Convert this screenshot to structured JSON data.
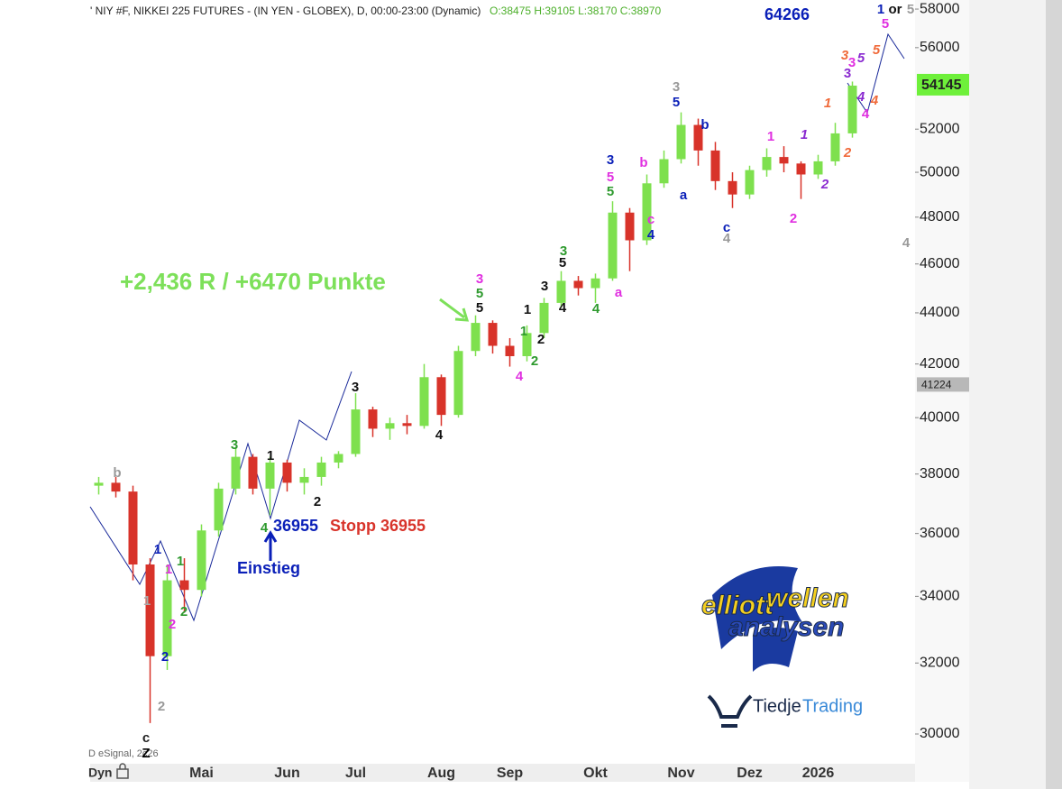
{
  "chart_data": {
    "type": "candlestick",
    "title": "' NIY #F, NIKKEI 225 FUTURES - (IN YEN - GLOBEX), D, 00:00-23:00 (Dynamic)",
    "subtitle": "O:38475 H:39105 L:38170 C:38970",
    "title_color": "#222222",
    "subtitle_color": "#4caf2a",
    "log_scale": true,
    "grid": false,
    "up_color": "#7ee04e",
    "down_color": "#d8332a",
    "ylim": [
      29175,
      58480
    ],
    "yticks": [
      30000,
      32000,
      34000,
      36000,
      38000,
      40000,
      42000,
      44000,
      46000,
      48000,
      50000,
      52000,
      56000,
      58000
    ],
    "categories": [
      null,
      null,
      null,
      null,
      null,
      null,
      "Mai",
      null,
      null,
      null,
      null,
      "Jun",
      null,
      null,
      null,
      "Jul",
      null,
      null,
      null,
      null,
      "Aug",
      null,
      null,
      null,
      "Sep",
      null,
      null,
      null,
      null,
      "Okt",
      null,
      null,
      null,
      null,
      "Nov",
      null,
      null,
      null,
      "Dez",
      null,
      null,
      null,
      "2026",
      null,
      null
    ],
    "open": [
      37600,
      37700,
      37400,
      35000,
      32200,
      34500,
      34200,
      36100,
      37500,
      38600,
      37500,
      38400,
      37700,
      37900,
      38400,
      38700,
      40300,
      39600,
      39800,
      39700,
      41500,
      40100,
      42500,
      43600,
      42700,
      42300,
      43200,
      44400,
      45300,
      45000,
      45400,
      48200,
      47000,
      49500,
      50600,
      52200,
      51000,
      49600,
      49000,
      50100,
      50700,
      50400,
      49900,
      50500,
      51800
    ],
    "high": [
      37900,
      37900,
      37600,
      35200,
      35000,
      35200,
      36300,
      37700,
      38900,
      38700,
      38600,
      38500,
      38200,
      38600,
      38800,
      40900,
      40400,
      40000,
      40100,
      42000,
      41600,
      42700,
      43900,
      43700,
      43000,
      43500,
      44600,
      45700,
      45500,
      45600,
      48700,
      48400,
      49900,
      51000,
      52800,
      52500,
      51400,
      50000,
      50300,
      51100,
      51200,
      50500,
      50800,
      52300,
      54300
    ],
    "low": [
      37300,
      37200,
      34500,
      30300,
      31800,
      33500,
      34000,
      35900,
      37300,
      37300,
      36600,
      37400,
      37300,
      37600,
      38200,
      38600,
      39300,
      39200,
      39400,
      39600,
      39700,
      40000,
      42300,
      42400,
      41900,
      42100,
      43000,
      44200,
      44700,
      44400,
      45300,
      45700,
      46800,
      49300,
      50400,
      50300,
      49200,
      48400,
      48800,
      49800,
      50000,
      48800,
      49700,
      50300,
      51600
    ],
    "close": [
      37700,
      37400,
      35000,
      32200,
      34500,
      34200,
      36100,
      37500,
      38600,
      37500,
      38400,
      37700,
      37900,
      38400,
      38700,
      40300,
      39600,
      39800,
      39700,
      41500,
      40100,
      42500,
      43600,
      42700,
      42300,
      43200,
      44400,
      45300,
      45000,
      45400,
      48200,
      47000,
      49500,
      50600,
      52200,
      51000,
      49600,
      49000,
      50100,
      50700,
      50400,
      49900,
      50500,
      51800,
      54100
    ],
    "price_markers": [
      {
        "value": 54145,
        "color": "#6ef03a"
      },
      {
        "value": 41224,
        "color": "#b8b8b8"
      }
    ],
    "corner_label": "Dyn",
    "copyright": "D eSignal, 2c26",
    "wave_labels": [
      {
        "text": "b",
        "color": "#999999"
      },
      {
        "text": "1",
        "color": "#aaaaaa"
      },
      {
        "text": "1",
        "color": "#0a1fb8"
      },
      {
        "text": "1",
        "color": "#e030e0"
      },
      {
        "text": "1",
        "color": "#2e9a2e"
      },
      {
        "text": "2",
        "color": "#e030e0"
      },
      {
        "text": "2",
        "color": "#2e9a2e"
      },
      {
        "text": "2",
        "color": "#0a1fb8"
      },
      {
        "text": "2",
        "color": "#999999"
      },
      {
        "text": "c",
        "color": "#222222"
      },
      {
        "text": "Z",
        "color": "#000000"
      },
      {
        "text": "3",
        "color": "#2e9a2e"
      },
      {
        "text": "4",
        "color": "#2e9a2e"
      },
      {
        "text": "1",
        "color": "#111111"
      },
      {
        "text": "2",
        "color": "#111111"
      },
      {
        "text": "3",
        "color": "#111111"
      },
      {
        "text": "4",
        "color": "#111111"
      },
      {
        "text": "3",
        "color": "#e030e0"
      },
      {
        "text": "5",
        "color": "#2e9a2e"
      },
      {
        "text": "5",
        "color": "#111111"
      },
      {
        "text": "1",
        "color": "#2e9a2e"
      },
      {
        "text": "1",
        "color": "#111111"
      },
      {
        "text": "2",
        "color": "#111111"
      },
      {
        "text": "2",
        "color": "#2e9a2e"
      },
      {
        "text": "4",
        "color": "#e030e0"
      },
      {
        "text": "3",
        "color": "#111111"
      },
      {
        "text": "3",
        "color": "#2e9a2e"
      },
      {
        "text": "5",
        "color": "#111111"
      },
      {
        "text": "4",
        "color": "#111111"
      },
      {
        "text": "4",
        "color": "#2e9a2e"
      },
      {
        "text": "3",
        "color": "#0a1fb8"
      },
      {
        "text": "5",
        "color": "#e030e0"
      },
      {
        "text": "5",
        "color": "#2e9a2e"
      },
      {
        "text": "a",
        "color": "#e030e0"
      },
      {
        "text": "b",
        "color": "#e030e0"
      },
      {
        "text": "c",
        "color": "#e030e0"
      },
      {
        "text": "4",
        "color": "#0a1fb8"
      },
      {
        "text": "3",
        "color": "#999999"
      },
      {
        "text": "5",
        "color": "#0a1fb8"
      },
      {
        "text": "b",
        "color": "#0a1fb8"
      },
      {
        "text": "a",
        "color": "#0a1fb8"
      },
      {
        "text": "c",
        "color": "#0a1fb8"
      },
      {
        "text": "4",
        "color": "#999999"
      },
      {
        "text": "1",
        "color": "#e030e0"
      },
      {
        "text": "2",
        "color": "#e030e0"
      },
      {
        "text": "4",
        "color": "#e030e0"
      },
      {
        "text": "5",
        "color": "#e030e0"
      },
      {
        "text": "1",
        "color": "#0a1fb8"
      },
      {
        "text": "or",
        "color": "#111111"
      },
      {
        "text": "5",
        "color": "#999999"
      },
      {
        "text": "4",
        "color": "#999999"
      },
      {
        "text": "3",
        "color": "#e030e0"
      },
      {
        "text": "3",
        "color": "#8a2ad0"
      },
      {
        "text": "1",
        "color": "#8a2ad0"
      },
      {
        "text": "2",
        "color": "#8a2ad0"
      },
      {
        "text": "1",
        "color": "#f06a3a"
      },
      {
        "text": "2",
        "color": "#f06a3a"
      },
      {
        "text": "3",
        "color": "#f06a3a"
      },
      {
        "text": "5",
        "color": "#f06a3a"
      },
      {
        "text": "4",
        "color": "#f06a3a"
      },
      {
        "text": "5",
        "color": "#8a2ad0"
      },
      {
        "text": "4",
        "color": "#8a2ad0"
      }
    ],
    "notes": [
      {
        "text": "+2,436 R / +6470 Punkte",
        "color": "#7de05a"
      },
      {
        "text": "36955",
        "color": "#0a1fb8"
      },
      {
        "text": "Stopp 36955",
        "color": "#d8332a"
      },
      {
        "text": "Einstieg",
        "color": "#0a1fb8"
      },
      {
        "text": "64266",
        "color": "#0a1fb8"
      }
    ],
    "logos": [
      {
        "text": "elliott",
        "color": "#f5d020"
      },
      {
        "text": "wellen",
        "color": "#f5d020"
      },
      {
        "text": "analysen",
        "color": "#2a4ab8"
      },
      {
        "text": "Tiedje",
        "color": "#1a2a4a"
      },
      {
        "text": "Trading",
        "color": "#3a8ad8"
      }
    ]
  }
}
